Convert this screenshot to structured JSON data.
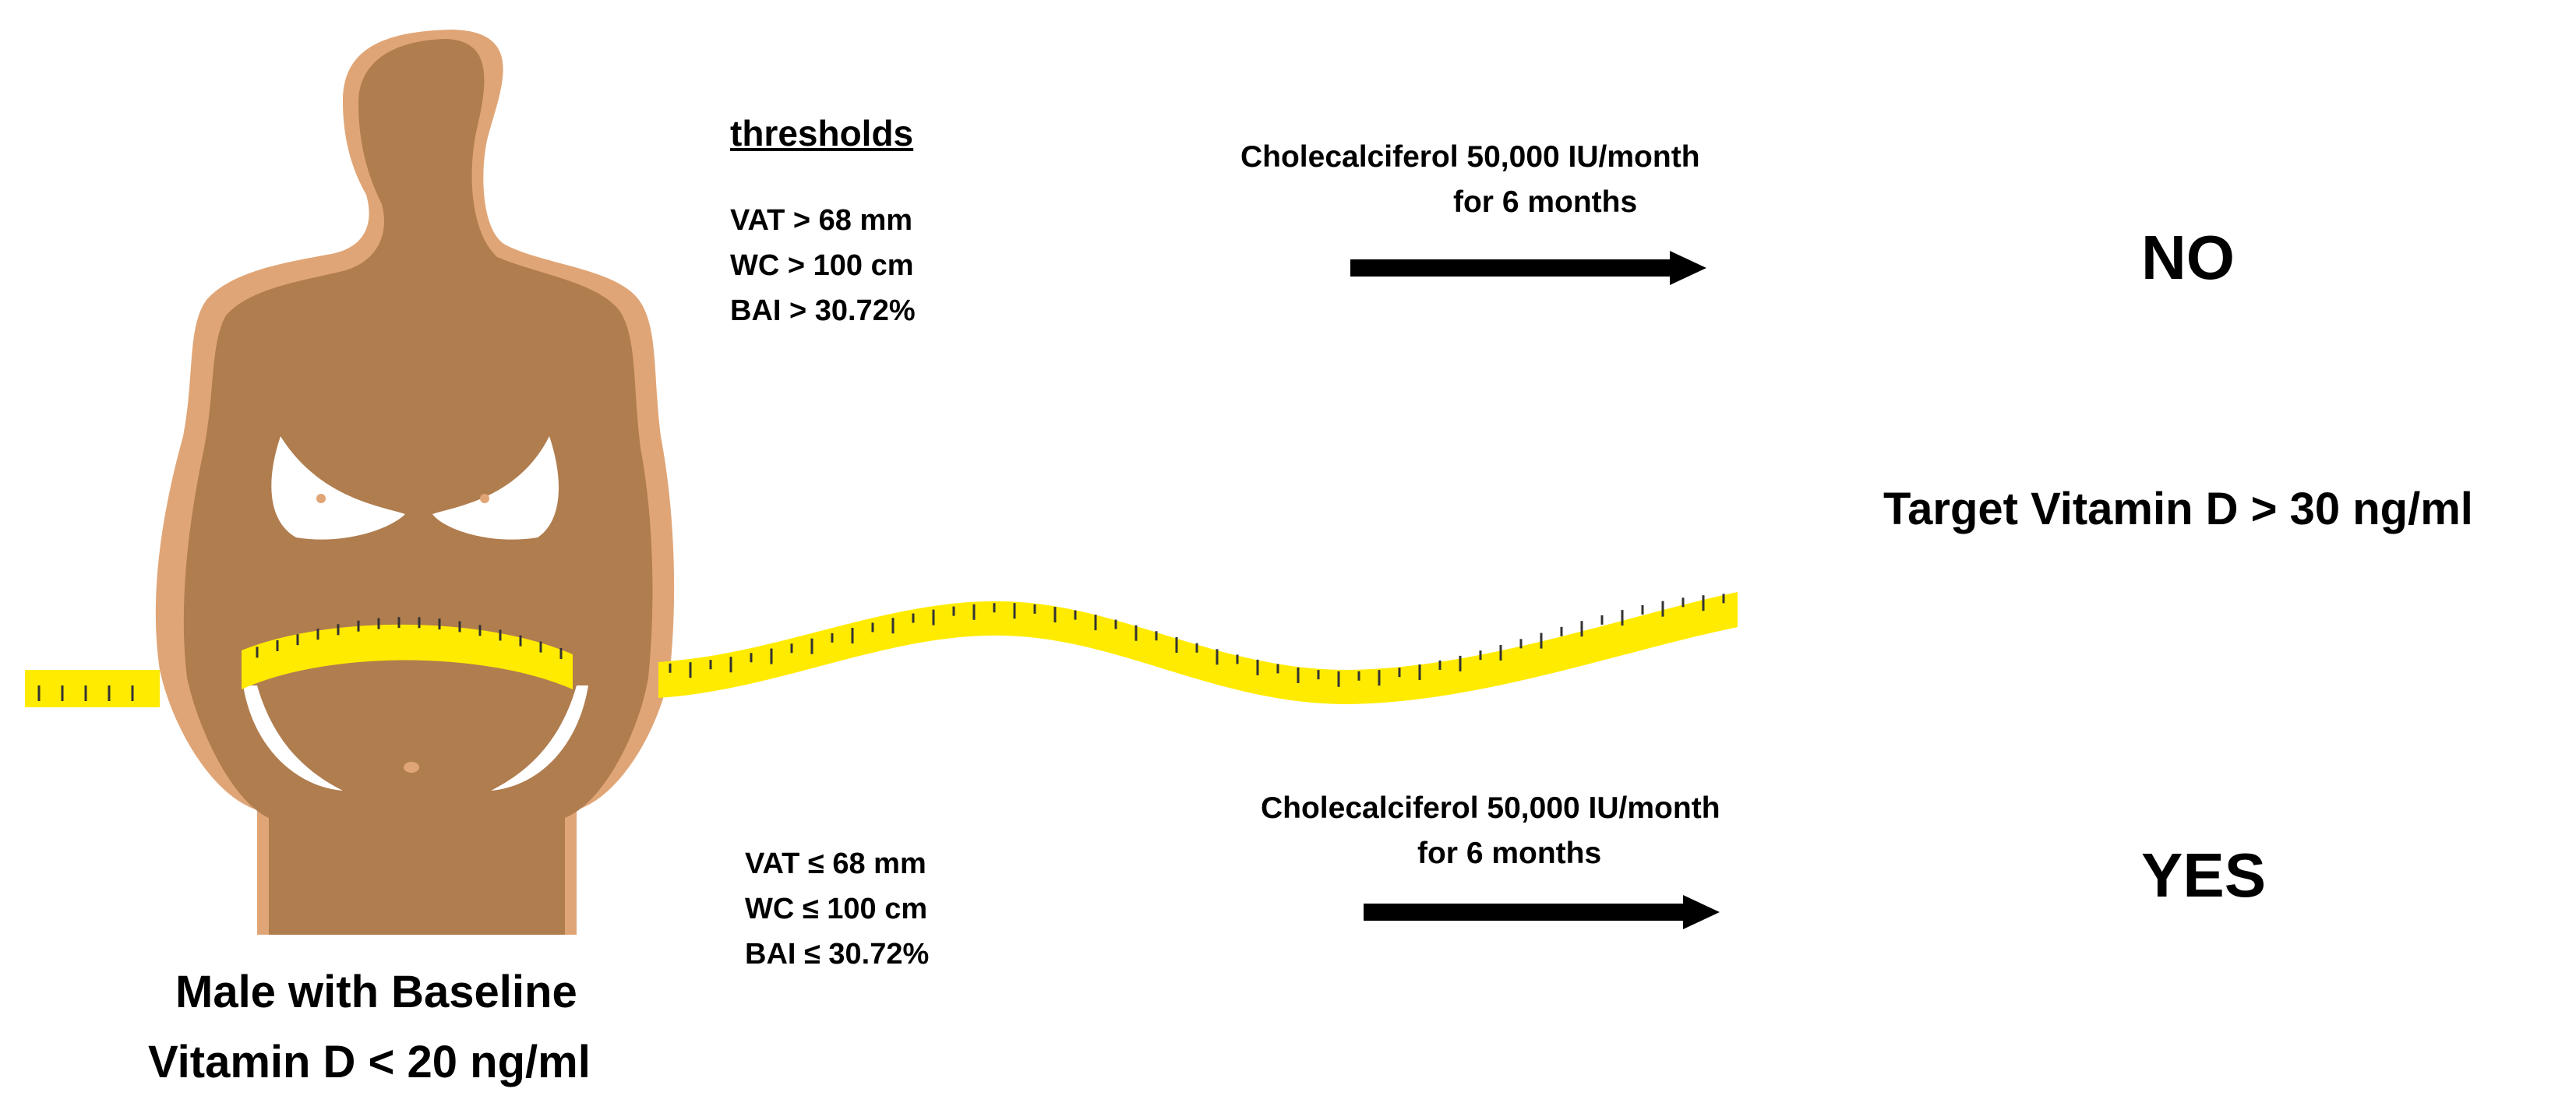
{
  "thresholds_heading": "thresholds",
  "high_group": {
    "criteria": [
      "VAT > 68 mm",
      "WC > 100 cm",
      "BAI > 30.72%"
    ],
    "treatment": [
      "Cholecalciferol 50,000 IU/month",
      "for 6 months"
    ],
    "outcome": "NO"
  },
  "low_group": {
    "criteria": [
      "VAT ≤ 68 mm",
      "WC ≤ 100 cm",
      "BAI ≤ 30.72%"
    ],
    "treatment": [
      "Cholecalciferol 50,000 IU/month",
      "for 6 months"
    ],
    "outcome": "YES"
  },
  "target": "Target Vitamin D > 30 ng/ml",
  "subject": [
    "Male with Baseline",
    "Vitamin D < 20 ng/ml"
  ],
  "colors": {
    "skin_dark": "#b07d4f",
    "skin_light": "#e0a576",
    "tape": "#ffeb00",
    "tape_tick": "#333333",
    "arrow": "#000000"
  }
}
